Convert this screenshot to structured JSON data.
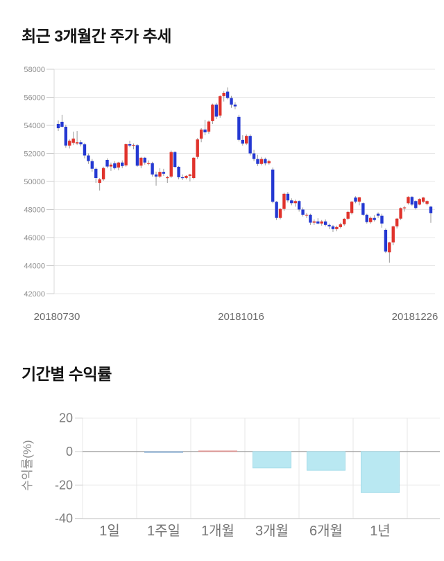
{
  "chart_data": [
    {
      "type": "candlestick",
      "title": "최근 3개월간 주가 추세",
      "ylim": [
        42000,
        58000
      ],
      "y_ticks": [
        58000,
        56000,
        54000,
        52000,
        50000,
        48000,
        46000,
        44000,
        42000
      ],
      "x_labels": [
        "20180730",
        "20181016",
        "20181226"
      ],
      "grid": "horizontal-only",
      "legend_position": "none",
      "colors": {
        "up": "#e0332c",
        "down": "#2438d2",
        "wick": "#999999",
        "grid": "#e7e7e7",
        "axis": "#d9d9d9",
        "tick_stub": "#cccccc",
        "tick_label": "#8f8f8f",
        "date_label": "#6b6b6b"
      },
      "candles": [
        [
          54100,
          54350,
          53600,
          53800
        ],
        [
          54250,
          54750,
          53850,
          53900
        ],
        [
          53900,
          54050,
          52400,
          52550
        ],
        [
          52550,
          53000,
          52350,
          52900
        ],
        [
          52750,
          53550,
          52600,
          53050
        ],
        [
          52700,
          53600,
          52600,
          52800
        ],
        [
          52800,
          52950,
          52500,
          52650
        ],
        [
          52650,
          52750,
          51650,
          51850
        ],
        [
          51850,
          52000,
          51250,
          51450
        ],
        [
          51450,
          51600,
          50700,
          50900
        ],
        [
          50900,
          51000,
          49900,
          50250
        ],
        [
          49900,
          50250,
          49350,
          50150
        ],
        [
          50150,
          51050,
          50050,
          50960
        ],
        [
          51530,
          51650,
          50950,
          51060
        ],
        [
          51060,
          51350,
          50750,
          51200
        ],
        [
          51300,
          51450,
          50850,
          50950
        ],
        [
          51000,
          51400,
          50800,
          51350
        ],
        [
          51350,
          51500,
          50950,
          51100
        ],
        [
          51150,
          52700,
          51050,
          52660
        ],
        [
          52660,
          52900,
          52450,
          52550
        ],
        [
          52550,
          52700,
          52300,
          52590
        ],
        [
          52590,
          52650,
          51050,
          51130
        ],
        [
          51130,
          51750,
          50950,
          51690
        ],
        [
          51690,
          51750,
          51200,
          51350
        ],
        [
          51250,
          51500,
          51150,
          51310
        ],
        [
          51310,
          51400,
          50350,
          50500
        ],
        [
          50500,
          50700,
          49700,
          50350
        ],
        [
          50350,
          50950,
          50250,
          50680
        ],
        [
          50680,
          50900,
          50400,
          50550
        ],
        [
          50250,
          50400,
          49900,
          50300
        ],
        [
          50350,
          52200,
          50250,
          52100
        ],
        [
          52100,
          52150,
          50950,
          51040
        ],
        [
          51040,
          51100,
          50150,
          50300
        ],
        [
          50300,
          50500,
          50100,
          50250
        ],
        [
          50250,
          50450,
          50150,
          50400
        ],
        [
          50400,
          50550,
          50000,
          50500
        ],
        [
          50250,
          51750,
          50150,
          51690
        ],
        [
          51750,
          53100,
          51600,
          53000
        ],
        [
          53050,
          53800,
          52800,
          53700
        ],
        [
          53700,
          54400,
          53300,
          53500
        ],
        [
          53550,
          54350,
          53400,
          54270
        ],
        [
          54300,
          55550,
          54100,
          55480
        ],
        [
          55480,
          55600,
          54450,
          54620
        ],
        [
          54700,
          56150,
          54550,
          56080
        ],
        [
          56080,
          56450,
          55700,
          56320
        ],
        [
          56400,
          56700,
          55850,
          55950
        ],
        [
          55950,
          56100,
          55250,
          55480
        ],
        [
          55480,
          55650,
          55150,
          55350
        ],
        [
          54600,
          54750,
          52850,
          52970
        ],
        [
          52970,
          53300,
          52550,
          52700
        ],
        [
          52700,
          53350,
          52600,
          53250
        ],
        [
          53250,
          53350,
          51850,
          52000
        ],
        [
          52000,
          52250,
          51450,
          51600
        ],
        [
          51600,
          51900,
          51100,
          51250
        ],
        [
          51250,
          51750,
          51150,
          51600
        ],
        [
          51600,
          51700,
          51150,
          51300
        ],
        [
          51300,
          51550,
          51200,
          51450
        ],
        [
          50850,
          51000,
          48450,
          48550
        ],
        [
          48550,
          48600,
          47250,
          47400
        ],
        [
          47400,
          48100,
          47300,
          48040
        ],
        [
          48040,
          49200,
          47900,
          49120
        ],
        [
          49120,
          49250,
          48500,
          48650
        ],
        [
          48650,
          48800,
          48300,
          48450
        ],
        [
          48450,
          48700,
          48200,
          48600
        ],
        [
          48600,
          48650,
          47850,
          48000
        ],
        [
          48000,
          48150,
          47500,
          47630
        ],
        [
          47600,
          47750,
          47400,
          47630
        ],
        [
          47630,
          47700,
          46900,
          47060
        ],
        [
          47060,
          47300,
          46900,
          47150
        ],
        [
          47150,
          47380,
          46950,
          47000
        ],
        [
          47000,
          47250,
          46850,
          47150
        ],
        [
          47150,
          47300,
          46800,
          46900
        ],
        [
          46900,
          47000,
          46600,
          46800
        ],
        [
          46800,
          46900,
          46400,
          46600
        ],
        [
          46600,
          46850,
          46450,
          46750
        ],
        [
          46750,
          47050,
          46650,
          46950
        ],
        [
          46950,
          47400,
          46850,
          47340
        ],
        [
          47340,
          47900,
          47250,
          47830
        ],
        [
          47740,
          48600,
          47650,
          48560
        ],
        [
          48850,
          48950,
          48450,
          48560
        ],
        [
          48560,
          48900,
          48300,
          48865
        ],
        [
          48455,
          48500,
          47550,
          47630
        ],
        [
          47630,
          47700,
          47000,
          47100
        ],
        [
          47100,
          47500,
          47000,
          47400
        ],
        [
          47400,
          47600,
          47150,
          47250
        ],
        [
          47700,
          47800,
          47400,
          47550
        ],
        [
          47550,
          47700,
          46700,
          47000
        ],
        [
          46550,
          46650,
          44900,
          45000
        ],
        [
          44950,
          45700,
          44200,
          45650
        ],
        [
          45650,
          46850,
          45450,
          46800
        ],
        [
          46800,
          47400,
          46650,
          47350
        ],
        [
          47350,
          48150,
          47250,
          48100
        ],
        [
          48100,
          48250,
          47850,
          48150
        ],
        [
          48450,
          48950,
          48350,
          48900
        ],
        [
          48900,
          48950,
          48250,
          48350
        ],
        [
          48600,
          48650,
          48000,
          48100
        ],
        [
          48350,
          48800,
          48300,
          48750
        ],
        [
          48550,
          48900,
          48450,
          48850
        ],
        [
          48400,
          48650,
          48300,
          48600
        ],
        [
          48200,
          48250,
          47050,
          47730
        ]
      ]
    },
    {
      "type": "bar",
      "title": "기간별 수익률",
      "ylabel": "수익률(%)",
      "categories": [
        "1일",
        "1주일",
        "1개월",
        "3개월",
        "6개월",
        "1년"
      ],
      "values": [
        0,
        -0.5,
        0.4,
        -9.8,
        -11.2,
        -24.5
      ],
      "y_ticks": [
        20,
        0,
        -20,
        -40
      ],
      "ylim": [
        -40,
        20
      ],
      "grid": "on",
      "legend_position": "none",
      "colors": {
        "bar_fill": "#b9e8f2",
        "bar_stroke": "#a3dbe8",
        "grid": "#e7e7e7",
        "zero": "#a8a8a8",
        "axis": "#cfcfcf",
        "tick_stub": "#cccccc",
        "tick_label": "#7d7d7d",
        "cat_label": "#757575",
        "ylabel_color": "#8a8a8a"
      },
      "bar_overrides": {
        "1": {
          "fill": "#cfe0ee",
          "stroke": "#8fb2d4"
        },
        "2": {
          "fill": "#f4d4d3",
          "stroke": "#e29a97"
        }
      }
    }
  ]
}
